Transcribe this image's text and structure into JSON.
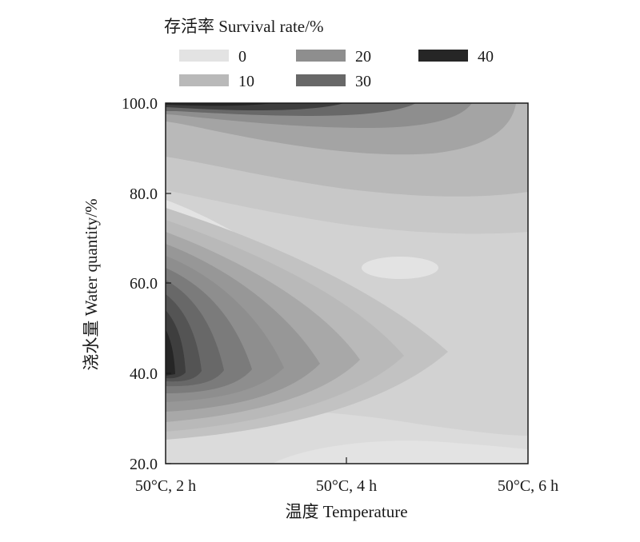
{
  "chart_data": {
    "type": "heatmap",
    "subtype": "filled-contour",
    "legend": {
      "title": "存活率 Survival rate/%",
      "placement": "top",
      "levels": [
        {
          "label": "0",
          "value": 0,
          "color": "#e3e3e3"
        },
        {
          "label": "10",
          "value": 10,
          "color": "#b9b9b9"
        },
        {
          "label": "20",
          "value": 20,
          "color": "#8e8e8e"
        },
        {
          "label": "30",
          "value": 30,
          "color": "#686868"
        },
        {
          "label": "40",
          "value": 40,
          "color": "#262626"
        }
      ]
    },
    "xlabel": "温度 Temperature",
    "ylabel": "浇水量 Water quantity/%",
    "x_categories": [
      "50°C, 2 h",
      "50°C, 4 h",
      "50°C, 6 h"
    ],
    "y_ticks": [
      "20.0",
      "40.0",
      "60.0",
      "80.0",
      "100.0"
    ],
    "ylim": [
      20,
      100
    ],
    "grid": false,
    "approx_survival_surface": {
      "note_x_index": [
        0,
        1,
        2
      ],
      "y_values": [
        20,
        40,
        60,
        80,
        100
      ],
      "z_columns_by_x": [
        [
          7,
          38,
          13,
          9,
          41
        ],
        [
          4,
          11,
          4,
          9,
          27
        ],
        [
          3,
          5,
          4,
          6,
          14
        ]
      ]
    }
  }
}
